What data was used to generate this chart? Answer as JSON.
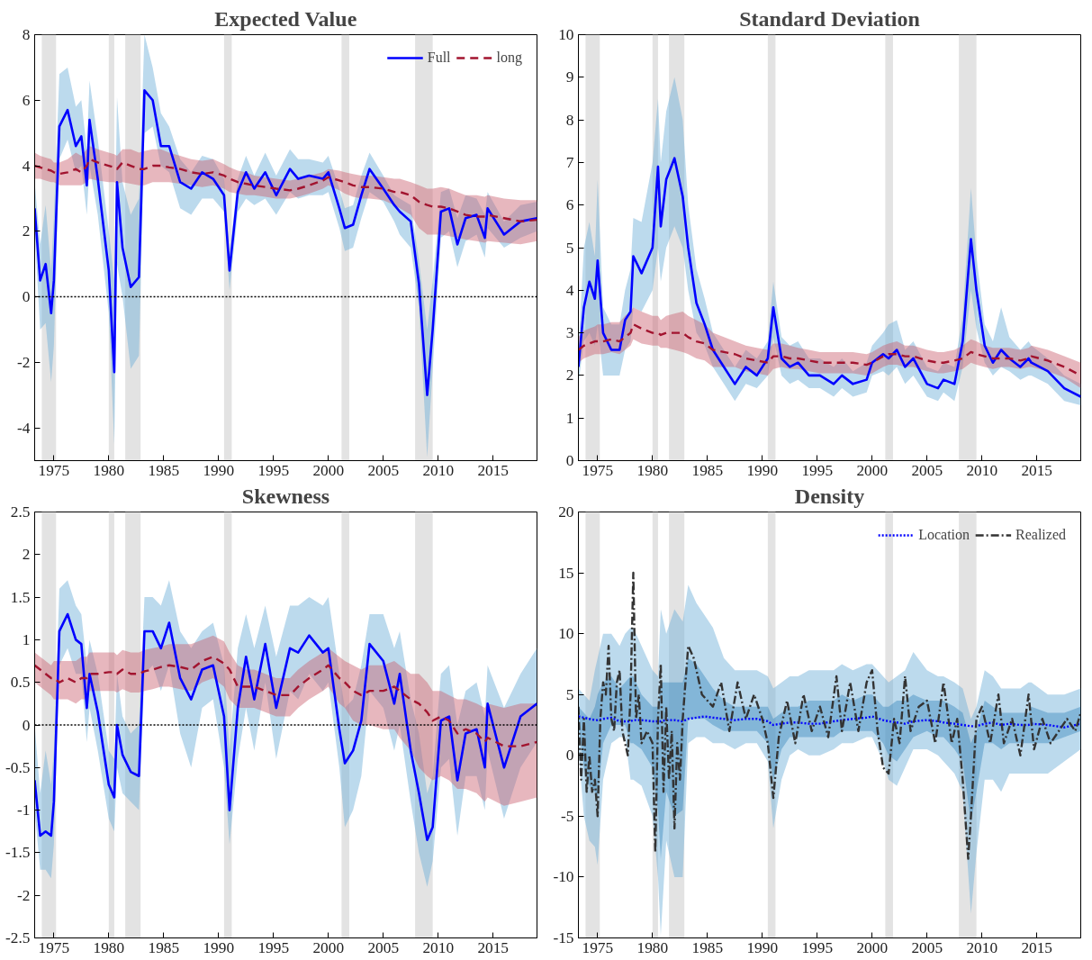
{
  "chart_data": [
    {
      "type": "line",
      "title": "Expected Value",
      "xlim": [
        1973.25,
        2019
      ],
      "xticks": [
        1975,
        1980,
        1985,
        1990,
        1995,
        2000,
        2005,
        2010,
        2015
      ],
      "ylim": [
        -5,
        8
      ],
      "yticks": [
        -4,
        -2,
        0,
        2,
        4,
        6,
        8
      ],
      "grid": false,
      "legend": "top right",
      "x": [
        1973.25,
        1973.75,
        1974.25,
        1974.75,
        1975.0,
        1975.5,
        1976.25,
        1977,
        1977.5,
        1978.0,
        1978.25,
        1979,
        1980,
        1980.5,
        1980.75,
        1981.25,
        1982,
        1982.75,
        1983.25,
        1984,
        1984.75,
        1985.5,
        1986.5,
        1987.5,
        1988.5,
        1989.5,
        1990.5,
        1991.0,
        1991.75,
        1992.5,
        1993.25,
        1994.25,
        1995.25,
        1996.5,
        1997.25,
        1998.25,
        1999.5,
        2000,
        2001,
        2001.5,
        2002.25,
        2003,
        2003.75,
        2005,
        2006,
        2006.5,
        2007.5,
        2008.25,
        2009,
        2009.5,
        2010.25,
        2011,
        2011.75,
        2012.5,
        2013.5,
        2014.25,
        2014.5,
        2016,
        2017.5,
        2019
      ],
      "bands": [
        {
          "axis": "x",
          "from": 1973.9,
          "to": 1975.2,
          "color": "#e3e3e3"
        },
        {
          "axis": "x",
          "from": 1980.0,
          "to": 1980.5,
          "color": "#e3e3e3"
        },
        {
          "axis": "x",
          "from": 1981.5,
          "to": 1982.9,
          "color": "#e3e3e3"
        },
        {
          "axis": "x",
          "from": 1990.5,
          "to": 1991.2,
          "color": "#e3e3e3"
        },
        {
          "axis": "x",
          "from": 2001.2,
          "to": 2001.9,
          "color": "#e3e3e3"
        },
        {
          "axis": "x",
          "from": 2007.9,
          "to": 2009.5,
          "color": "#e3e3e3"
        }
      ],
      "ref_lines": [
        {
          "axis": "y",
          "value": 0,
          "color": "#000000",
          "line_style": "dotted"
        }
      ],
      "series": [
        {
          "name": "Full",
          "color": "#0000ff",
          "line_style": "solid",
          "values": [
            2.7,
            0.5,
            1.0,
            -0.5,
            0.5,
            5.2,
            5.7,
            4.6,
            4.9,
            3.4,
            5.4,
            3.6,
            0.8,
            -2.3,
            3.5,
            1.5,
            0.3,
            0.6,
            6.3,
            6.0,
            4.6,
            4.6,
            3.5,
            3.3,
            3.8,
            3.6,
            3.1,
            0.8,
            3.2,
            3.8,
            3.3,
            3.8,
            3.1,
            3.9,
            3.6,
            3.7,
            3.6,
            3.8,
            2.7,
            2.1,
            2.2,
            3.1,
            3.9,
            3.3,
            2.8,
            2.6,
            2.3,
            0.4,
            -3.0,
            -1.0,
            2.6,
            2.7,
            1.6,
            2.4,
            2.5,
            1.8,
            2.7,
            1.9,
            2.3,
            2.4
          ],
          "lower": [
            2.0,
            -1.0,
            -0.8,
            -2.6,
            -1.5,
            4.2,
            4.8,
            3.8,
            4.0,
            2.5,
            4.0,
            2.5,
            -0.5,
            -4.5,
            1.0,
            0.0,
            -2.2,
            -1.8,
            5.0,
            5.2,
            4.0,
            3.8,
            2.7,
            2.5,
            3.0,
            3.0,
            2.6,
            0.2,
            2.6,
            3.0,
            2.8,
            3.0,
            2.5,
            3.2,
            3.0,
            3.1,
            3.1,
            3.2,
            2.1,
            1.4,
            1.5,
            2.4,
            3.2,
            2.9,
            2.3,
            1.9,
            1.5,
            -0.3,
            -4.9,
            -2.2,
            1.8,
            2.0,
            0.9,
            1.7,
            1.9,
            1.2,
            2.1,
            1.5,
            1.8,
            2.0
          ],
          "upper": [
            3.5,
            1.6,
            2.8,
            0.8,
            2.4,
            6.8,
            7.0,
            5.8,
            6.0,
            4.5,
            6.6,
            4.8,
            2.0,
            0.5,
            6.1,
            3.5,
            2.5,
            3.0,
            8.0,
            7.0,
            5.6,
            5.2,
            4.2,
            3.8,
            4.3,
            4.2,
            3.6,
            1.3,
            3.6,
            4.3,
            3.7,
            4.4,
            3.7,
            4.5,
            4.2,
            4.2,
            4.1,
            4.3,
            3.3,
            2.7,
            2.8,
            3.7,
            4.4,
            3.7,
            3.1,
            3.0,
            2.8,
            1.1,
            -1.0,
            0.5,
            3.2,
            3.3,
            2.4,
            3.1,
            3.0,
            2.5,
            3.2,
            2.3,
            2.8,
            2.9
          ]
        },
        {
          "name": "long",
          "color": "#a2142f",
          "line_style": "dashed",
          "values": [
            4.0,
            3.95,
            3.9,
            3.85,
            3.8,
            3.75,
            3.8,
            3.9,
            3.8,
            4.0,
            4.2,
            4.1,
            4.0,
            3.95,
            3.9,
            4.1,
            4.0,
            3.9,
            3.9,
            4.0,
            4.0,
            3.95,
            3.9,
            3.8,
            3.75,
            3.8,
            3.7,
            3.6,
            3.5,
            3.45,
            3.4,
            3.35,
            3.3,
            3.25,
            3.3,
            3.4,
            3.55,
            3.65,
            3.55,
            3.5,
            3.4,
            3.35,
            3.35,
            3.3,
            3.2,
            3.2,
            3.1,
            2.9,
            2.8,
            2.75,
            2.75,
            2.7,
            2.6,
            2.5,
            2.45,
            2.45,
            2.5,
            2.4,
            2.3,
            2.35
          ],
          "lower": [
            3.6,
            3.6,
            3.55,
            3.5,
            3.5,
            3.4,
            3.4,
            3.4,
            3.4,
            3.5,
            3.6,
            3.55,
            3.5,
            3.5,
            3.45,
            3.5,
            3.45,
            3.4,
            3.4,
            3.5,
            3.5,
            3.5,
            3.45,
            3.4,
            3.35,
            3.4,
            3.3,
            3.2,
            3.15,
            3.1,
            3.1,
            3.05,
            3.0,
            3.0,
            3.05,
            3.15,
            3.3,
            3.4,
            3.25,
            3.15,
            3.05,
            3.0,
            3.0,
            2.95,
            2.8,
            2.7,
            2.5,
            2.1,
            1.9,
            1.9,
            1.9,
            1.85,
            1.8,
            1.75,
            1.7,
            1.65,
            1.7,
            1.65,
            1.6,
            1.7
          ],
          "upper": [
            4.4,
            4.3,
            4.25,
            4.2,
            4.1,
            4.1,
            4.2,
            4.4,
            4.3,
            4.5,
            4.6,
            4.5,
            4.4,
            4.35,
            4.3,
            4.5,
            4.5,
            4.4,
            4.45,
            4.5,
            4.5,
            4.4,
            4.3,
            4.2,
            4.15,
            4.2,
            4.05,
            3.95,
            3.85,
            3.8,
            3.7,
            3.65,
            3.6,
            3.55,
            3.6,
            3.7,
            3.8,
            3.9,
            3.85,
            3.8,
            3.75,
            3.7,
            3.7,
            3.65,
            3.6,
            3.6,
            3.5,
            3.4,
            3.3,
            3.3,
            3.35,
            3.3,
            3.2,
            3.1,
            3.1,
            3.05,
            3.1,
            3.0,
            2.95,
            2.95
          ]
        }
      ]
    },
    {
      "type": "line",
      "title": "Standard Deviation",
      "xlim": [
        1973.25,
        2019
      ],
      "xticks": [
        1975,
        1980,
        1985,
        1990,
        1995,
        2000,
        2005,
        2010,
        2015
      ],
      "ylim": [
        0,
        10
      ],
      "yticks": [
        0,
        1,
        2,
        3,
        4,
        5,
        6,
        7,
        8,
        9,
        10
      ],
      "grid": false,
      "x": [
        1973.25,
        1973.75,
        1974.25,
        1974.75,
        1975.0,
        1975.5,
        1976.25,
        1977,
        1977.5,
        1978.0,
        1978.25,
        1979,
        1980,
        1980.5,
        1980.75,
        1981.25,
        1982,
        1982.75,
        1983.25,
        1984,
        1984.75,
        1985.5,
        1986.5,
        1987.5,
        1988.5,
        1989.5,
        1990.5,
        1991.0,
        1991.75,
        1992.5,
        1993.25,
        1994.25,
        1995.25,
        1996.5,
        1997.25,
        1998.25,
        1999.5,
        2000,
        2001,
        2001.5,
        2002.25,
        2003,
        2003.75,
        2005,
        2006,
        2006.5,
        2007.5,
        2008.25,
        2009,
        2009.5,
        2010.25,
        2011,
        2011.75,
        2012.5,
        2013.5,
        2014.25,
        2014.5,
        2016,
        2017.5,
        2019
      ],
      "bands": [
        {
          "axis": "x",
          "from": 1973.9,
          "to": 1975.2,
          "color": "#e3e3e3"
        },
        {
          "axis": "x",
          "from": 1980.0,
          "to": 1980.5,
          "color": "#e3e3e3"
        },
        {
          "axis": "x",
          "from": 1981.5,
          "to": 1982.9,
          "color": "#e3e3e3"
        },
        {
          "axis": "x",
          "from": 1990.5,
          "to": 1991.2,
          "color": "#e3e3e3"
        },
        {
          "axis": "x",
          "from": 2001.2,
          "to": 2001.9,
          "color": "#e3e3e3"
        },
        {
          "axis": "x",
          "from": 2007.9,
          "to": 2009.5,
          "color": "#e3e3e3"
        }
      ],
      "series": [
        {
          "color": "#0000ff",
          "line_style": "solid",
          "values": [
            2.2,
            3.6,
            4.2,
            3.8,
            4.7,
            3.0,
            2.6,
            2.6,
            3.3,
            3.5,
            4.8,
            4.4,
            5.0,
            6.9,
            5.5,
            6.6,
            7.1,
            6.2,
            5.0,
            3.7,
            3.2,
            2.6,
            2.2,
            1.8,
            2.2,
            2.0,
            2.4,
            3.6,
            2.4,
            2.2,
            2.3,
            2.0,
            2.0,
            1.8,
            2.0,
            1.8,
            1.9,
            2.3,
            2.5,
            2.4,
            2.6,
            2.2,
            2.4,
            1.8,
            1.7,
            1.9,
            1.8,
            2.8,
            5.2,
            4.0,
            2.7,
            2.3,
            2.6,
            2.4,
            2.2,
            2.4,
            2.3,
            2.1,
            1.7,
            1.5
          ],
          "lower": [
            1.8,
            2.8,
            3.0,
            2.7,
            3.2,
            2.0,
            2.0,
            2.0,
            2.6,
            2.8,
            3.6,
            3.5,
            4.0,
            5.0,
            4.2,
            5.0,
            5.5,
            5.0,
            4.0,
            3.0,
            2.7,
            2.2,
            1.8,
            1.4,
            1.8,
            1.7,
            2.0,
            2.9,
            2.0,
            1.8,
            1.9,
            1.7,
            1.7,
            1.5,
            1.7,
            1.5,
            1.6,
            2.0,
            2.1,
            2.0,
            2.2,
            1.8,
            2.0,
            1.5,
            1.4,
            1.6,
            1.4,
            2.2,
            4.0,
            3.1,
            2.3,
            2.0,
            2.2,
            2.1,
            1.9,
            2.0,
            2.0,
            1.8,
            1.4,
            1.3
          ],
          "upper": [
            2.6,
            5.0,
            5.6,
            4.8,
            6.6,
            3.6,
            3.2,
            3.2,
            4.0,
            4.5,
            5.7,
            5.6,
            7.0,
            8.5,
            7.0,
            8.2,
            9.0,
            8.0,
            6.0,
            4.5,
            3.8,
            3.0,
            2.6,
            2.2,
            2.6,
            2.4,
            2.8,
            4.2,
            2.9,
            2.7,
            2.8,
            2.4,
            2.4,
            2.2,
            2.4,
            2.1,
            2.3,
            2.7,
            3.0,
            3.2,
            3.3,
            2.6,
            2.8,
            2.2,
            2.1,
            2.3,
            2.2,
            3.4,
            6.4,
            4.8,
            3.2,
            2.8,
            3.6,
            2.9,
            2.6,
            2.8,
            2.7,
            2.4,
            2.0,
            1.8
          ]
        },
        {
          "color": "#a2142f",
          "line_style": "dashed",
          "values": [
            2.6,
            2.7,
            2.75,
            2.8,
            2.8,
            2.8,
            2.85,
            2.8,
            2.9,
            3.0,
            3.2,
            3.1,
            3.0,
            3.0,
            2.95,
            3.0,
            3.0,
            3.0,
            2.9,
            2.8,
            2.75,
            2.6,
            2.55,
            2.5,
            2.4,
            2.35,
            2.3,
            2.45,
            2.45,
            2.4,
            2.4,
            2.35,
            2.3,
            2.3,
            2.3,
            2.3,
            2.25,
            2.3,
            2.45,
            2.5,
            2.5,
            2.45,
            2.45,
            2.35,
            2.3,
            2.3,
            2.35,
            2.4,
            2.55,
            2.5,
            2.45,
            2.4,
            2.4,
            2.4,
            2.35,
            2.4,
            2.45,
            2.35,
            2.2,
            2.0
          ],
          "lower": [
            2.3,
            2.4,
            2.45,
            2.5,
            2.5,
            2.5,
            2.55,
            2.5,
            2.6,
            2.7,
            2.85,
            2.75,
            2.7,
            2.7,
            2.65,
            2.65,
            2.6,
            2.55,
            2.5,
            2.4,
            2.35,
            2.2,
            2.2,
            2.2,
            2.1,
            2.05,
            2.0,
            2.15,
            2.2,
            2.15,
            2.15,
            2.1,
            2.05,
            2.05,
            2.05,
            2.05,
            2.0,
            2.05,
            2.2,
            2.25,
            2.25,
            2.2,
            2.2,
            2.1,
            2.05,
            2.05,
            2.1,
            2.15,
            2.3,
            2.25,
            2.2,
            2.15,
            2.2,
            2.2,
            2.15,
            2.2,
            2.2,
            2.1,
            1.95,
            1.7
          ],
          "upper": [
            2.9,
            3.05,
            3.1,
            3.15,
            3.2,
            3.2,
            3.25,
            3.25,
            3.4,
            3.5,
            3.6,
            3.5,
            3.4,
            3.4,
            3.3,
            3.4,
            3.45,
            3.5,
            3.4,
            3.3,
            3.2,
            3.0,
            2.9,
            2.8,
            2.7,
            2.65,
            2.6,
            2.75,
            2.75,
            2.7,
            2.65,
            2.6,
            2.55,
            2.55,
            2.55,
            2.55,
            2.5,
            2.55,
            2.7,
            2.75,
            2.8,
            2.7,
            2.7,
            2.6,
            2.55,
            2.55,
            2.6,
            2.7,
            2.85,
            2.8,
            2.7,
            2.65,
            2.65,
            2.65,
            2.6,
            2.65,
            2.7,
            2.6,
            2.45,
            2.3
          ]
        }
      ]
    },
    {
      "type": "line",
      "title": "Skewness",
      "xlim": [
        1973.25,
        2019
      ],
      "xticks": [
        1975,
        1980,
        1985,
        1990,
        1995,
        2000,
        2005,
        2010,
        2015
      ],
      "ylim": [
        -2.5,
        2.5
      ],
      "yticks": [
        -2.5,
        -2,
        -1.5,
        -1,
        -0.5,
        0,
        0.5,
        1,
        1.5,
        2,
        2.5
      ],
      "grid": false,
      "x": [
        1973.25,
        1973.75,
        1974.25,
        1974.75,
        1975.0,
        1975.5,
        1976.25,
        1977,
        1977.5,
        1978.0,
        1978.25,
        1979,
        1980,
        1980.5,
        1980.75,
        1981.25,
        1982,
        1982.75,
        1983.25,
        1984,
        1984.75,
        1985.5,
        1986.5,
        1987.5,
        1988.5,
        1989.5,
        1990.5,
        1991.0,
        1991.75,
        1992.5,
        1993.25,
        1994.25,
        1995.25,
        1996.5,
        1997.25,
        1998.25,
        1999.5,
        2000,
        2001,
        2001.5,
        2002.25,
        2003,
        2003.75,
        2005,
        2006,
        2006.5,
        2007.5,
        2008.25,
        2009,
        2009.5,
        2010.25,
        2011,
        2011.75,
        2012.5,
        2013.5,
        2014.25,
        2014.5,
        2016,
        2017.5,
        2019
      ],
      "bands": [
        {
          "axis": "x",
          "from": 1973.9,
          "to": 1975.2,
          "color": "#e3e3e3"
        },
        {
          "axis": "x",
          "from": 1980.0,
          "to": 1980.5,
          "color": "#e3e3e3"
        },
        {
          "axis": "x",
          "from": 1981.5,
          "to": 1982.9,
          "color": "#e3e3e3"
        },
        {
          "axis": "x",
          "from": 1990.5,
          "to": 1991.2,
          "color": "#e3e3e3"
        },
        {
          "axis": "x",
          "from": 2001.2,
          "to": 2001.9,
          "color": "#e3e3e3"
        },
        {
          "axis": "x",
          "from": 2007.9,
          "to": 2009.5,
          "color": "#e3e3e3"
        }
      ],
      "ref_lines": [
        {
          "axis": "y",
          "value": 0,
          "color": "#000000",
          "line_style": "dotted"
        }
      ],
      "series": [
        {
          "color": "#0000ff",
          "line_style": "solid",
          "values": [
            -0.65,
            -1.3,
            -1.25,
            -1.3,
            -0.9,
            1.1,
            1.3,
            1.0,
            0.95,
            0.2,
            0.6,
            0.15,
            -0.7,
            -0.85,
            0.0,
            -0.35,
            -0.55,
            -0.6,
            1.1,
            1.1,
            0.9,
            1.2,
            0.55,
            0.3,
            0.65,
            0.7,
            0.1,
            -1.0,
            0.2,
            0.8,
            0.3,
            0.95,
            0.2,
            0.9,
            0.85,
            1.05,
            0.85,
            0.9,
            -0.05,
            -0.45,
            -0.3,
            0.05,
            0.95,
            0.75,
            0.25,
            0.6,
            -0.3,
            -0.8,
            -1.35,
            -1.2,
            0.05,
            0.1,
            -0.65,
            -0.1,
            -0.05,
            -0.5,
            0.25,
            -0.5,
            0.1,
            0.25
          ],
          "lower": [
            -1.0,
            -1.7,
            -1.7,
            -1.8,
            -1.4,
            0.7,
            0.9,
            0.6,
            0.6,
            -0.2,
            0.2,
            -0.3,
            -1.1,
            -1.25,
            -0.5,
            -0.8,
            -0.9,
            -1.0,
            0.6,
            0.7,
            0.4,
            0.7,
            -0.1,
            -0.5,
            0.2,
            0.3,
            -0.5,
            -1.4,
            -0.4,
            0.2,
            -0.3,
            0.5,
            -0.4,
            0.4,
            0.3,
            0.6,
            0.4,
            0.5,
            -0.5,
            -1.2,
            -1.0,
            -0.6,
            0.4,
            0.2,
            -0.3,
            0.0,
            -0.9,
            -1.5,
            -1.9,
            -1.6,
            -0.5,
            -0.4,
            -1.3,
            -0.6,
            -0.6,
            -1.0,
            -0.3,
            -1.1,
            -0.5,
            -0.2
          ],
          "upper": [
            0.0,
            -0.8,
            -0.3,
            -0.7,
            -0.3,
            1.6,
            1.7,
            1.4,
            1.3,
            0.7,
            1.0,
            0.6,
            -0.3,
            -0.4,
            0.6,
            0.1,
            -0.1,
            0.0,
            1.5,
            1.5,
            1.4,
            1.7,
            1.1,
            0.9,
            1.1,
            1.2,
            0.7,
            -0.3,
            0.9,
            1.3,
            0.9,
            1.4,
            0.8,
            1.4,
            1.4,
            1.5,
            1.4,
            1.5,
            0.6,
            0.2,
            0.3,
            0.7,
            1.3,
            1.3,
            0.9,
            1.1,
            0.3,
            -0.1,
            -0.8,
            -0.6,
            0.6,
            0.7,
            0.0,
            0.4,
            0.5,
            0.1,
            0.7,
            0.2,
            0.6,
            0.9
          ]
        },
        {
          "color": "#a2142f",
          "line_style": "dashed",
          "values": [
            0.7,
            0.65,
            0.6,
            0.55,
            0.55,
            0.5,
            0.55,
            0.5,
            0.55,
            0.55,
            0.6,
            0.6,
            0.62,
            0.62,
            0.6,
            0.65,
            0.6,
            0.6,
            0.63,
            0.65,
            0.68,
            0.7,
            0.68,
            0.65,
            0.75,
            0.8,
            0.72,
            0.65,
            0.45,
            0.45,
            0.45,
            0.4,
            0.35,
            0.35,
            0.45,
            0.55,
            0.65,
            0.7,
            0.55,
            0.5,
            0.4,
            0.35,
            0.4,
            0.4,
            0.45,
            0.4,
            0.3,
            0.25,
            0.15,
            0.05,
            0.1,
            0.05,
            -0.1,
            -0.05,
            -0.1,
            -0.2,
            -0.15,
            -0.25,
            -0.25,
            -0.2
          ],
          "lower": [
            0.5,
            0.45,
            0.4,
            0.35,
            0.3,
            0.3,
            0.3,
            0.25,
            0.3,
            0.3,
            0.4,
            0.4,
            0.4,
            0.4,
            0.38,
            0.42,
            0.38,
            0.38,
            0.4,
            0.42,
            0.45,
            0.45,
            0.42,
            0.4,
            0.5,
            0.55,
            0.45,
            0.3,
            0.2,
            0.2,
            0.2,
            0.15,
            0.1,
            0.1,
            0.2,
            0.3,
            0.4,
            0.45,
            0.25,
            0.2,
            0.05,
            0.0,
            0.0,
            -0.05,
            -0.05,
            -0.15,
            -0.3,
            -0.5,
            -0.6,
            -0.65,
            -0.6,
            -0.65,
            -0.75,
            -0.75,
            -0.8,
            -0.9,
            -0.85,
            -0.95,
            -0.9,
            -0.85
          ],
          "upper": [
            0.85,
            0.8,
            0.75,
            0.7,
            0.75,
            0.75,
            0.75,
            0.75,
            0.8,
            0.8,
            0.85,
            0.85,
            0.85,
            0.85,
            0.82,
            0.88,
            0.85,
            0.85,
            0.88,
            0.9,
            0.92,
            0.95,
            0.95,
            0.95,
            1.0,
            1.05,
            0.98,
            0.85,
            0.7,
            0.65,
            0.65,
            0.6,
            0.55,
            0.55,
            0.65,
            0.75,
            0.85,
            0.9,
            0.8,
            0.75,
            0.7,
            0.65,
            0.7,
            0.7,
            0.75,
            0.7,
            0.6,
            0.6,
            0.5,
            0.4,
            0.4,
            0.35,
            0.3,
            0.3,
            0.25,
            0.2,
            0.25,
            0.2,
            0.25,
            0.25
          ]
        }
      ]
    },
    {
      "type": "line",
      "title": "Density",
      "xlim": [
        1973.25,
        2019
      ],
      "xticks": [
        1975,
        1980,
        1985,
        1990,
        1995,
        2000,
        2005,
        2010,
        2015
      ],
      "ylim": [
        -15,
        20
      ],
      "yticks": [
        -15,
        -10,
        -5,
        0,
        5,
        10,
        15,
        20
      ],
      "grid": false,
      "legend": "top right",
      "x": [
        1973.25,
        1973.75,
        1974.25,
        1974.75,
        1975.0,
        1975.5,
        1976.25,
        1977,
        1977.5,
        1978.0,
        1978.25,
        1979,
        1980,
        1980.5,
        1980.75,
        1981.25,
        1982,
        1982.75,
        1983.25,
        1984,
        1984.75,
        1985.5,
        1986.5,
        1987.5,
        1988.5,
        1989.5,
        1990.5,
        1991.0,
        1991.75,
        1992.5,
        1993.25,
        1994.25,
        1995.25,
        1996.5,
        1997.25,
        1998.25,
        1999.5,
        2000,
        2001,
        2001.5,
        2002.25,
        2003,
        2003.75,
        2005,
        2006,
        2006.5,
        2007.5,
        2008.25,
        2009,
        2009.5,
        2010.25,
        2011,
        2011.75,
        2012.5,
        2013.5,
        2014.25,
        2014.5,
        2016,
        2017.5,
        2019
      ],
      "bands": [
        {
          "axis": "x",
          "from": 1973.9,
          "to": 1975.2,
          "color": "#e3e3e3"
        },
        {
          "axis": "x",
          "from": 1980.0,
          "to": 1980.5,
          "color": "#e3e3e3"
        },
        {
          "axis": "x",
          "from": 1981.5,
          "to": 1982.9,
          "color": "#e3e3e3"
        },
        {
          "axis": "x",
          "from": 1990.5,
          "to": 1991.2,
          "color": "#e3e3e3"
        },
        {
          "axis": "x",
          "from": 2001.2,
          "to": 2001.9,
          "color": "#e3e3e3"
        },
        {
          "axis": "x",
          "from": 2007.9,
          "to": 2009.5,
          "color": "#e3e3e3"
        }
      ],
      "series": [
        {
          "name": "Location",
          "color": "#0000ff",
          "line_style": "dotted",
          "values": [
            3.2,
            3.1,
            3.0,
            2.9,
            2.9,
            3.0,
            3.1,
            2.8,
            2.8,
            2.8,
            2.9,
            2.9,
            2.8,
            2.8,
            2.8,
            2.9,
            2.9,
            2.8,
            3.0,
            3.1,
            3.2,
            3.1,
            3.0,
            2.9,
            3.0,
            3.0,
            2.8,
            2.5,
            2.6,
            2.7,
            2.7,
            2.6,
            2.6,
            2.8,
            2.9,
            3.0,
            3.1,
            3.2,
            2.9,
            2.8,
            2.7,
            2.6,
            2.8,
            2.9,
            2.8,
            2.7,
            2.6,
            2.5,
            2.4,
            2.4,
            2.6,
            2.7,
            2.5,
            2.6,
            2.5,
            2.5,
            2.6,
            2.5,
            2.3,
            2.6
          ],
          "lower": [
            0.5,
            -5.0,
            -7.0,
            -7.5,
            -9.0,
            -2.0,
            1.0,
            1.5,
            1.5,
            -2.0,
            -2.0,
            -2.5,
            -5.0,
            -10.0,
            -14.8,
            -7.0,
            -10.0,
            -10.0,
            1.0,
            1.5,
            1.5,
            1.0,
            1.0,
            0.5,
            1.0,
            1.0,
            -0.5,
            -6.0,
            -2.0,
            0.0,
            0.5,
            0.0,
            0.0,
            0.5,
            1.0,
            1.0,
            1.5,
            1.5,
            -0.5,
            -2.0,
            -2.5,
            -1.0,
            0.5,
            0.5,
            0.0,
            -0.5,
            -1.5,
            -3.0,
            -13.0,
            -8.0,
            -2.0,
            -2.0,
            -3.0,
            -1.5,
            -1.5,
            -1.5,
            -1.5,
            -1.5,
            -0.5,
            0.5
          ],
          "upper": [
            5.5,
            5.0,
            4.5,
            7.0,
            8.0,
            10.0,
            10.0,
            9.0,
            10.0,
            10.5,
            10.5,
            9.0,
            7.0,
            6.5,
            12.0,
            10.0,
            12.0,
            11.0,
            14.0,
            12.5,
            11.5,
            10.5,
            8.0,
            7.0,
            7.0,
            7.0,
            6.5,
            5.5,
            6.0,
            6.5,
            6.5,
            7.0,
            7.0,
            7.0,
            7.5,
            7.0,
            7.5,
            7.5,
            6.5,
            6.0,
            6.5,
            7.0,
            8.5,
            7.0,
            6.5,
            6.5,
            6.0,
            5.5,
            3.0,
            4.0,
            7.0,
            6.5,
            5.5,
            5.5,
            5.5,
            6.0,
            6.0,
            5.0,
            5.0,
            5.5
          ]
        },
        {
          "color": "#0000ff",
          "values": [
            null,
            null,
            null,
            null,
            null,
            null,
            null,
            null,
            null,
            null,
            null,
            null,
            null,
            null,
            null,
            null,
            null,
            null,
            null,
            null,
            null,
            null,
            null,
            null,
            null,
            null,
            null,
            null,
            null,
            null,
            null,
            null,
            null,
            null,
            null,
            null,
            null,
            null,
            null,
            null,
            null,
            null,
            null,
            null,
            null,
            null,
            null,
            null,
            null,
            null,
            null,
            null,
            null,
            null,
            null,
            null,
            null,
            null,
            null,
            null
          ],
          "lower": [
            2.5,
            -1.0,
            -2.5,
            -3.0,
            -3.5,
            1.0,
            2.5,
            2.5,
            2.5,
            1.0,
            1.0,
            0.5,
            -1.0,
            -4.5,
            -8.5,
            -3.0,
            -5.0,
            -4.5,
            3.0,
            3.0,
            3.0,
            2.5,
            2.0,
            2.0,
            2.0,
            2.0,
            1.0,
            -2.0,
            0.5,
            1.5,
            1.5,
            1.5,
            1.5,
            1.5,
            2.0,
            2.0,
            2.0,
            2.0,
            1.0,
            0.0,
            -0.5,
            0.5,
            1.5,
            2.0,
            1.5,
            1.5,
            0.5,
            -0.5,
            -5.5,
            -3.0,
            1.0,
            1.0,
            0.5,
            1.0,
            1.0,
            1.0,
            1.0,
            1.0,
            1.5,
            2.0
          ],
          "upper": [
            4.0,
            3.5,
            3.0,
            4.0,
            5.0,
            6.0,
            6.5,
            5.5,
            6.0,
            6.5,
            6.5,
            5.0,
            4.0,
            4.0,
            6.0,
            6.0,
            6.0,
            6.0,
            8.0,
            7.5,
            6.5,
            5.5,
            4.5,
            4.0,
            4.0,
            4.0,
            4.0,
            3.0,
            3.5,
            4.0,
            4.0,
            4.5,
            4.5,
            4.5,
            5.0,
            4.5,
            5.0,
            5.0,
            4.0,
            4.0,
            4.5,
            4.5,
            5.0,
            4.5,
            4.5,
            4.5,
            4.0,
            3.5,
            1.0,
            2.0,
            4.5,
            4.0,
            3.5,
            3.5,
            3.5,
            3.5,
            4.0,
            3.5,
            3.5,
            4.0
          ]
        },
        {
          "name": "Realized",
          "color": "#333333",
          "line_style": "dashdot",
          "x": [
            1973.25,
            1973.5,
            1973.75,
            1974.0,
            1974.25,
            1974.5,
            1974.75,
            1975.0,
            1975.25,
            1975.5,
            1975.75,
            1976.0,
            1976.25,
            1976.5,
            1976.75,
            1977.0,
            1977.25,
            1977.5,
            1977.75,
            1978.0,
            1978.25,
            1978.5,
            1978.75,
            1979.0,
            1979.5,
            1980.0,
            1980.25,
            1980.5,
            1980.75,
            1981.0,
            1981.25,
            1981.5,
            1981.75,
            1982.0,
            1982.25,
            1982.5,
            1982.75,
            1983.0,
            1983.25,
            1983.75,
            1984.5,
            1985.5,
            1986.25,
            1987,
            1987.75,
            1988.5,
            1989.25,
            1990.0,
            1990.5,
            1991.0,
            1991.5,
            1992.25,
            1993.0,
            1993.75,
            1994.5,
            1995.25,
            1996.0,
            1996.75,
            1997.25,
            1998.0,
            1998.75,
            1999.5,
            2000.0,
            2000.5,
            2001.0,
            2001.5,
            2002.0,
            2002.5,
            2003.0,
            2003.5,
            2004.25,
            2005.0,
            2005.75,
            2006.5,
            2007.25,
            2007.75,
            2008.25,
            2008.75,
            2009.0,
            2009.5,
            2010.0,
            2010.75,
            2011.5,
            2012.0,
            2012.75,
            2013.5,
            2014.25,
            2014.75,
            2015.5,
            2016.25,
            2017.0,
            2017.75,
            2018.5,
            2019.0
          ],
          "values": [
            4,
            -2,
            3,
            -3,
            0,
            -3,
            -2,
            -5,
            3,
            6,
            5,
            9,
            3,
            2,
            6,
            7,
            2,
            1,
            0,
            5,
            15,
            3,
            5,
            1,
            2,
            1,
            -8,
            3,
            7.5,
            -3,
            4,
            -2,
            2,
            -6,
            1,
            -2,
            3,
            6,
            9,
            8,
            5,
            4,
            6,
            2,
            6,
            3,
            5,
            3,
            1,
            -3.5,
            1.5,
            4.5,
            1,
            5,
            2,
            4,
            1.5,
            6.5,
            2,
            6,
            2,
            6,
            7,
            2,
            -1,
            -1.5,
            3,
            1,
            6.5,
            2,
            4,
            4.5,
            1,
            6,
            1,
            3,
            -2,
            -8.5,
            -5,
            3,
            4,
            1,
            5,
            1,
            3,
            0,
            5,
            0.5,
            3,
            1,
            2,
            3,
            2,
            3.5
          ]
        }
      ]
    }
  ]
}
